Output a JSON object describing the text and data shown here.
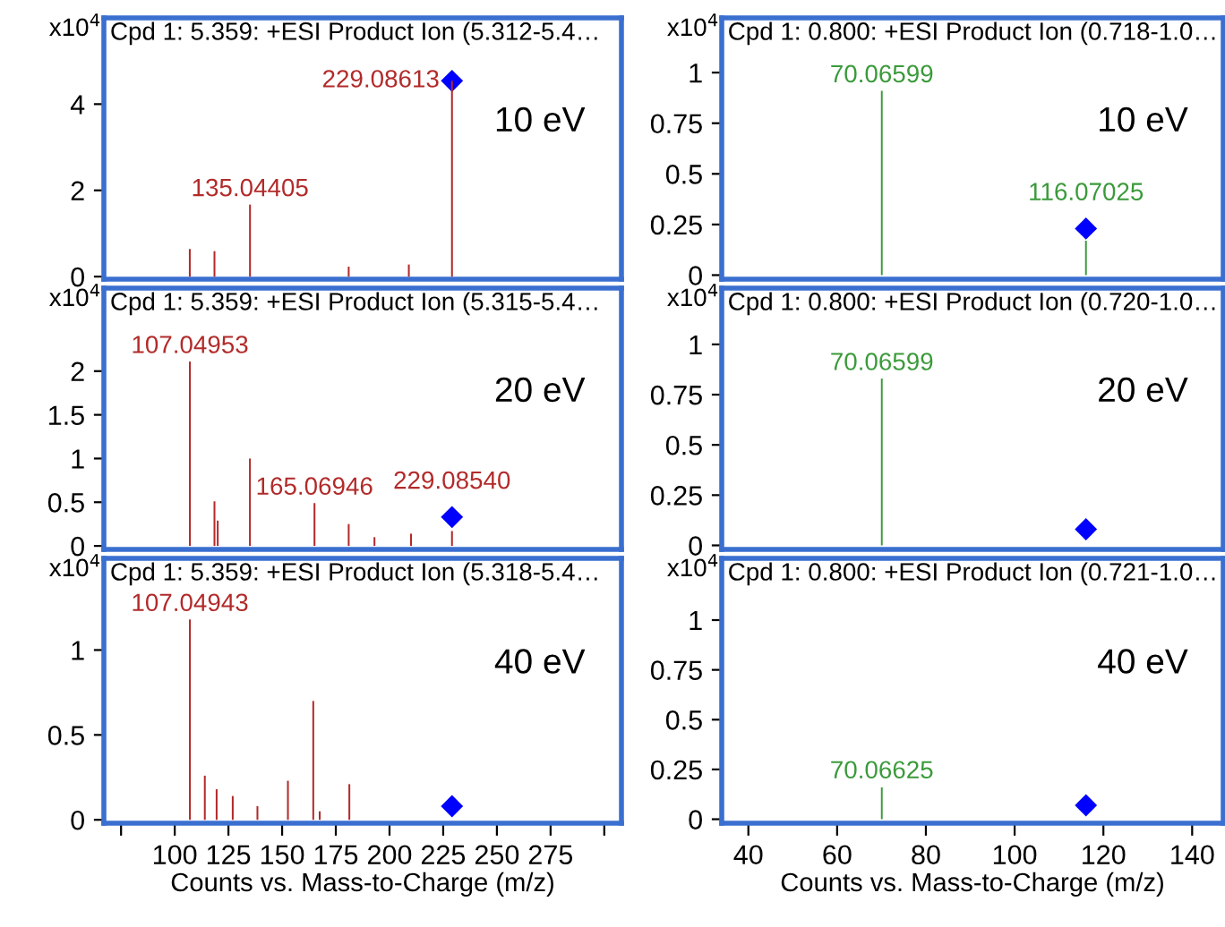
{
  "chart_data": [
    {
      "type": "bar",
      "title": "Cpd 1: 5.359: +ESI Product Ion (5.312-5.4…",
      "ylabel": "x10$^{4}$",
      "xlim": [
        67,
        308
      ],
      "ylim": [
        -0.06,
        6.0
      ],
      "yticks": [
        0,
        2,
        4
      ],
      "tick_labels": "y",
      "grid": false,
      "series": [
        {
          "color": "#b22a2a",
          "x": [
            107,
            118.5,
            135.04,
            181,
            209,
            229.09
          ],
          "values": [
            0.64,
            0.59,
            1.67,
            0.23,
            0.28,
            4.54
          ]
        },
        {
          "type": "scatter",
          "marker": "diamond",
          "color": "#0000ff",
          "x": [
            229.09
          ],
          "values": [
            4.54
          ]
        }
      ],
      "annotations": [
        "10 eV",
        {
          "text": "135.04405",
          "x": 135.04,
          "y": 1.67
        },
        {
          "text": "229.08613",
          "x": 229.09,
          "y": 4.54
        }
      ]
    },
    {
      "type": "bar",
      "title": "Cpd 1: 0.800: +ESI Product Ion (0.718-1.0…",
      "ylabel": "x10$^{4}$",
      "xlim": [
        34,
        147
      ],
      "ylim": [
        -0.02,
        1.27
      ],
      "yticks": [
        0,
        0.25,
        0.5,
        0.75,
        1
      ],
      "tick_labels": "y",
      "grid": false,
      "series": [
        {
          "color": "#3a9a3a",
          "x": [
            70.066,
            116.07
          ],
          "values": [
            0.91,
            0.17
          ]
        },
        {
          "type": "scatter",
          "marker": "diamond",
          "color": "#0000ff",
          "x": [
            116.07
          ],
          "values": [
            0.23
          ]
        }
      ],
      "annotations": [
        "10 eV",
        {
          "text": "70.06599",
          "x": 70.066,
          "y": 0.91
        },
        {
          "text": "116.07025",
          "x": 116.07,
          "y": 0.23
        }
      ]
    },
    {
      "type": "bar",
      "title": "Cpd 1: 5.359: +ESI Product Ion (5.315-5.4…",
      "ylabel": "x10$^{4}$",
      "xlim": [
        67,
        308
      ],
      "ylim": [
        -0.04,
        2.95
      ],
      "yticks": [
        0,
        0.5,
        1,
        1.5,
        2
      ],
      "tick_labels": "y",
      "grid": false,
      "series": [
        {
          "color": "#b22a2a",
          "x": [
            107.05,
            118.5,
            120,
            135,
            165.07,
            181,
            193,
            210,
            229.09
          ],
          "values": [
            2.11,
            0.51,
            0.29,
            1.0,
            0.49,
            0.25,
            0.1,
            0.14,
            0.17
          ]
        },
        {
          "type": "scatter",
          "marker": "diamond",
          "color": "#0000ff",
          "x": [
            229.09
          ],
          "values": [
            0.33
          ]
        }
      ],
      "annotations": [
        "20 eV",
        {
          "text": "107.04953",
          "x": 107.05,
          "y": 2.11
        },
        {
          "text": "165.06946",
          "x": 165.07,
          "y": 0.49
        },
        {
          "text": "229.08540",
          "x": 229.09,
          "y": 0.33
        }
      ]
    },
    {
      "type": "bar",
      "title": "Cpd 1: 0.800: +ESI Product Ion (0.720-1.0…",
      "ylabel": "x10$^{4}$",
      "xlim": [
        34,
        147
      ],
      "ylim": [
        -0.02,
        1.28
      ],
      "yticks": [
        0,
        0.25,
        0.5,
        0.75,
        1
      ],
      "tick_labels": "y",
      "grid": false,
      "series": [
        {
          "color": "#3a9a3a",
          "x": [
            70.066
          ],
          "values": [
            0.83
          ]
        },
        {
          "type": "scatter",
          "marker": "diamond",
          "color": "#0000ff",
          "x": [
            116.07
          ],
          "values": [
            0.08
          ]
        }
      ],
      "annotations": [
        "20 eV",
        {
          "text": "70.06599",
          "x": 70.066,
          "y": 0.83
        }
      ]
    },
    {
      "type": "bar",
      "title": "Cpd 1: 5.359: +ESI Product Ion (5.318-5.4…",
      "ylabel": "x10$^{4}$",
      "xlabel": "Counts vs. Mass-to-Charge (m/z)",
      "xlim": [
        67,
        308
      ],
      "ylim": [
        -0.02,
        1.54
      ],
      "yticks": [
        0,
        0.5,
        1
      ],
      "xticks": [
        {
          "value": 75,
          "label": null
        },
        100,
        125,
        150,
        175,
        200,
        225,
        250,
        275,
        {
          "value": 300,
          "label": null
        }
      ],
      "grid": false,
      "series": [
        {
          "color": "#b22a2a",
          "x": [
            107.05,
            114,
            119.5,
            127,
            138.5,
            152.7,
            164.5,
            167.5,
            181.3
          ],
          "values": [
            1.18,
            0.26,
            0.18,
            0.14,
            0.08,
            0.23,
            0.7,
            0.05,
            0.21
          ]
        },
        {
          "type": "scatter",
          "marker": "diamond",
          "color": "#0000ff",
          "x": [
            229.09
          ],
          "values": [
            0.08
          ]
        }
      ],
      "annotations": [
        "40 eV",
        {
          "text": "107.04943",
          "x": 107.05,
          "y": 1.18
        }
      ]
    },
    {
      "type": "bar",
      "title": "Cpd 1: 0.800: +ESI Product Ion (0.721-1.0…",
      "ylabel": "x10$^{4}$",
      "xlabel": "Counts vs. Mass-to-Charge (m/z)",
      "xlim": [
        34,
        147
      ],
      "ylim": [
        -0.02,
        1.31
      ],
      "yticks": [
        0,
        0.25,
        0.5,
        0.75,
        1
      ],
      "xticks": [
        40,
        60,
        80,
        100,
        120,
        140
      ],
      "grid": false,
      "series": [
        {
          "color": "#3a9a3a",
          "x": [
            70.066
          ],
          "values": [
            0.16
          ]
        },
        {
          "type": "scatter",
          "marker": "diamond",
          "color": "#0000ff",
          "x": [
            116.07
          ],
          "values": [
            0.07
          ]
        }
      ],
      "annotations": [
        "40 eV",
        {
          "text": "70.06625",
          "x": 70.066,
          "y": 0.163
        }
      ]
    }
  ]
}
